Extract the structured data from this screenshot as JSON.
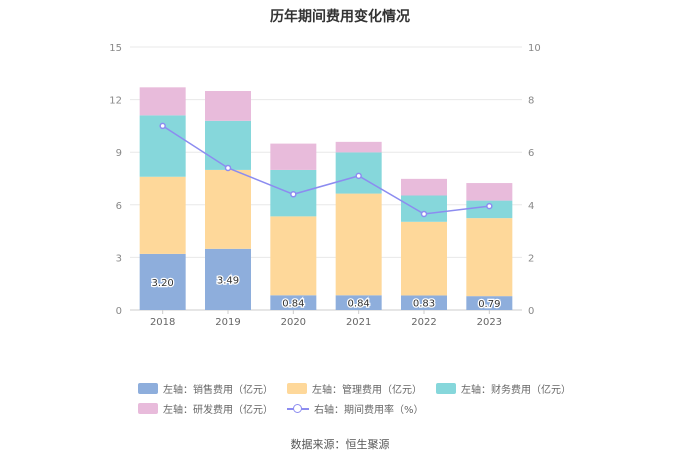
{
  "chart_data": {
    "type": "bar",
    "title": "历年期间费用变化情况",
    "categories": [
      "2018",
      "2019",
      "2020",
      "2021",
      "2022",
      "2023"
    ],
    "stacked": true,
    "left_axis": {
      "ylim": [
        0,
        15
      ],
      "ticks": [
        0,
        3,
        6,
        9,
        12,
        15
      ]
    },
    "right_axis": {
      "ylim": [
        0,
        10
      ],
      "ticks": [
        0,
        2,
        4,
        6,
        8,
        10
      ]
    },
    "series": [
      {
        "name": "左轴：销售费用（亿元）",
        "axis": "left",
        "color": "#8eaedc",
        "values": [
          3.2,
          3.49,
          0.84,
          0.84,
          0.83,
          0.79
        ],
        "labels": [
          "3.20",
          "3.49",
          "0.84",
          "0.84",
          "0.83",
          "0.79"
        ]
      },
      {
        "name": "左轴：管理费用（亿元）",
        "axis": "left",
        "color": "#fed89a",
        "values": [
          4.4,
          4.5,
          4.5,
          5.8,
          4.2,
          4.45
        ]
      },
      {
        "name": "左轴：财务费用（亿元）",
        "axis": "left",
        "color": "#86d7db",
        "values": [
          3.5,
          2.8,
          2.65,
          2.35,
          1.5,
          1.0
        ]
      },
      {
        "name": "左轴：研发费用（亿元）",
        "axis": "left",
        "color": "#e8bbdb",
        "values": [
          1.6,
          1.7,
          1.5,
          0.6,
          0.95,
          1.0
        ]
      },
      {
        "name": "右轴：期间费用率（%）",
        "axis": "right",
        "type": "line",
        "color": "#8c8cf0",
        "values": [
          7.0,
          5.4,
          4.4,
          5.1,
          3.65,
          3.95
        ]
      }
    ],
    "grid": true,
    "legend_position": "bottom"
  },
  "source_text": "数据来源：恒生聚源"
}
